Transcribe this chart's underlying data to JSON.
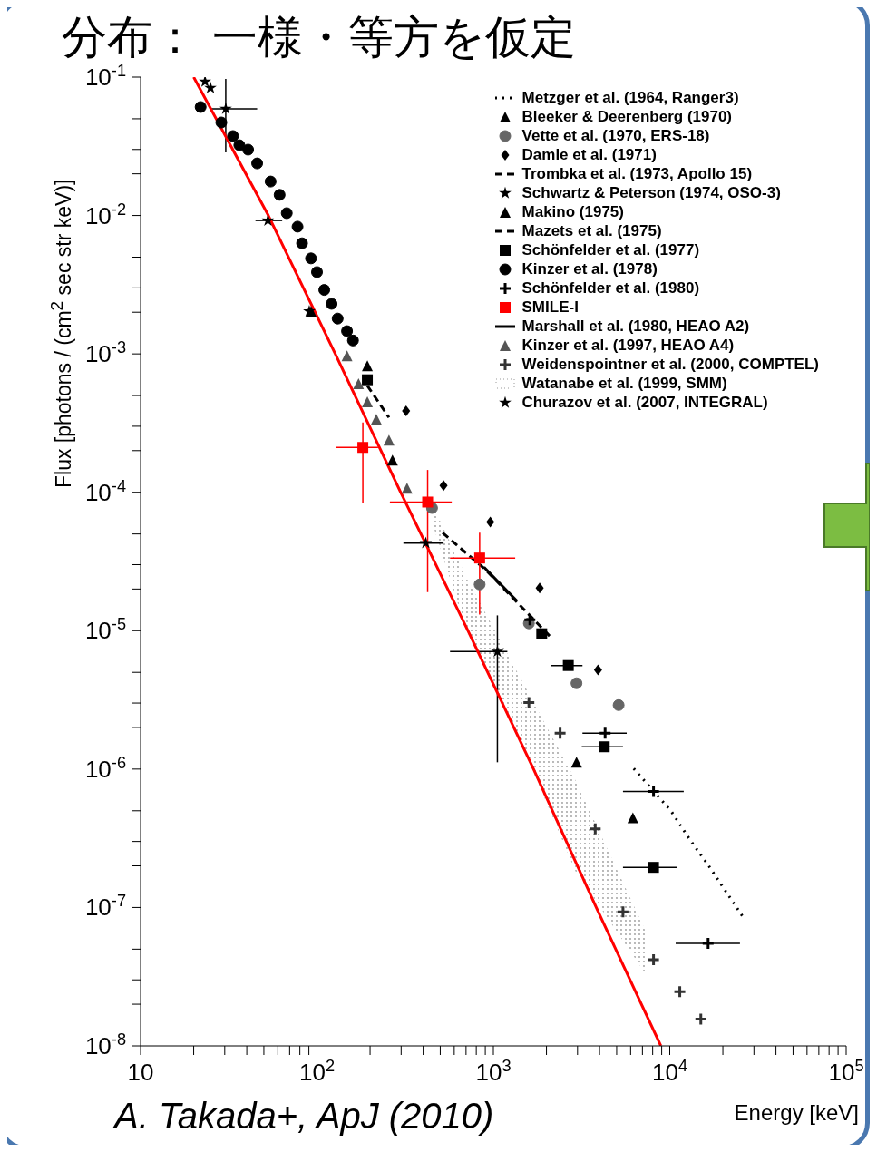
{
  "chart_data": {
    "type": "scatter",
    "title": "分布： 一様・等方を仮定",
    "xlabel": "Energy [keV]",
    "ylabel": "Flux [photons / (cm$^{2}$ sec str keV)]",
    "annotations": [
      "A. Takada+, ApJ (2010)"
    ],
    "log": "xy",
    "legend": "top right",
    "xlim": [
      10,
      100000
    ],
    "ylim": [
      1e-08,
      0.1
    ],
    "xticks": [
      {
        "value": 10,
        "label": "10"
      },
      {
        "value": 20,
        "label": null
      },
      {
        "value": 30,
        "label": null
      },
      {
        "value": 40,
        "label": null
      },
      {
        "value": 50,
        "label": null
      },
      {
        "value": 60,
        "label": null
      },
      {
        "value": 70,
        "label": null
      },
      {
        "value": 80,
        "label": null
      },
      {
        "value": 90,
        "label": null
      },
      {
        "value": 100,
        "label": "10$^{2}$"
      },
      {
        "value": 200,
        "label": null
      },
      {
        "value": 300,
        "label": null
      },
      {
        "value": 400,
        "label": null
      },
      {
        "value": 500,
        "label": null
      },
      {
        "value": 600,
        "label": null
      },
      {
        "value": 700,
        "label": null
      },
      {
        "value": 800,
        "label": null
      },
      {
        "value": 900,
        "label": null
      },
      {
        "value": 1000,
        "label": "10$^{3}$"
      },
      {
        "value": 2000,
        "label": null
      },
      {
        "value": 3000,
        "label": null
      },
      {
        "value": 4000,
        "label": null
      },
      {
        "value": 5000,
        "label": null
      },
      {
        "value": 6000,
        "label": null
      },
      {
        "value": 7000,
        "label": null
      },
      {
        "value": 8000,
        "label": null
      },
      {
        "value": 9000,
        "label": null
      },
      {
        "value": 10000,
        "label": "10$^{4}$"
      },
      {
        "value": 20000,
        "label": null
      },
      {
        "value": 30000,
        "label": null
      },
      {
        "value": 40000,
        "label": null
      },
      {
        "value": 50000,
        "label": null
      },
      {
        "value": 60000,
        "label": null
      },
      {
        "value": 70000,
        "label": null
      },
      {
        "value": 80000,
        "label": null
      },
      {
        "value": 90000,
        "label": null
      },
      {
        "value": 100000,
        "label": "10$^{5}$"
      }
    ],
    "yticks": [
      {
        "value": 1e-08,
        "label": "10$^{-8}$"
      },
      {
        "value": 2e-08,
        "label": null
      },
      {
        "value": 3e-08,
        "label": null
      },
      {
        "value": 5e-08,
        "label": null
      },
      {
        "value": 1e-07,
        "label": "10$^{-7}$"
      },
      {
        "value": 2e-07,
        "label": null
      },
      {
        "value": 3e-07,
        "label": null
      },
      {
        "value": 5e-07,
        "label": null
      },
      {
        "value": 1e-06,
        "label": "10$^{-6}$"
      },
      {
        "value": 2e-06,
        "label": null
      },
      {
        "value": 3e-06,
        "label": null
      },
      {
        "value": 5e-06,
        "label": null
      },
      {
        "value": 1e-05,
        "label": "10$^{-5}$"
      },
      {
        "value": 2e-05,
        "label": null
      },
      {
        "value": 3e-05,
        "label": null
      },
      {
        "value": 5e-05,
        "label": null
      },
      {
        "value": 0.0001,
        "label": "10$^{-4}$"
      },
      {
        "value": 0.0002,
        "label": null
      },
      {
        "value": 0.0003,
        "label": null
      },
      {
        "value": 0.0005,
        "label": null
      },
      {
        "value": 0.001,
        "label": "10$^{-3}$"
      },
      {
        "value": 0.002,
        "label": null
      },
      {
        "value": 0.003,
        "label": null
      },
      {
        "value": 0.005,
        "label": null
      },
      {
        "value": 0.01,
        "label": "10$^{-2}$"
      },
      {
        "value": 0.02,
        "label": null
      },
      {
        "value": 0.03,
        "label": null
      },
      {
        "value": 0.05,
        "label": null
      },
      {
        "value": 0.1,
        "label": "10$^{-1}$"
      }
    ],
    "series": [
      {
        "name": "Metzger et al. (1964, Ranger3)",
        "type": "line",
        "line_style": "dotted",
        "color": "#000000",
        "x": [
          6250,
          10200,
          13100,
          16500,
          26400
        ],
        "values": [
          1.01e-06,
          4.95e-07,
          3.05e-07,
          2.03e-07,
          8.3e-08
        ]
      },
      {
        "name": "Bleeker & Deerenberg (1970)",
        "marker": "triangle",
        "color": "#000000",
        "x": [
          92.5,
          193
        ],
        "values": [
          0.00203,
          0.00082
        ]
      },
      {
        "name": "Vette et al. (1970, ERS-18)",
        "marker": "circle",
        "color": "#666666",
        "x": [
          449,
          836,
          1590,
          2960,
          5130
        ],
        "values": [
          7.7e-05,
          2.16e-05,
          1.13e-05,
          4.17e-06,
          2.9e-06
        ]
      },
      {
        "name": "Damle et al. (1971)",
        "marker": "diamond",
        "color": "#000000",
        "x": [
          320,
          522,
          961,
          1830,
          3920
        ],
        "values": [
          0.000387,
          0.000112,
          6.1e-05,
          2.03e-05,
          5.2e-06
        ]
      },
      {
        "name": "Trombka et al. (1973, Apollo 15)",
        "type": "line",
        "line_style": "dashed",
        "color": "#000000",
        "x": [
          516,
          906,
          2130
        ],
        "values": [
          5.1e-05,
          2.75e-05,
          8.9e-06
        ]
      },
      {
        "name": "Schwartz & Peterson (1974, OSO-3)",
        "marker": "star",
        "color": "#000000",
        "x": [
          30.4,
          52.7,
          90.4,
          414,
          1054
        ],
        "values": [
          0.059,
          0.0092,
          0.00203,
          4.3e-05,
          7.06e-06
        ],
        "errors": [
          [
            0.0286,
            0.097
          ],
          null,
          null,
          null,
          [
            1.12e-06,
            1.29e-05
          ]
        ],
        "xerrors": [
          [
            24.9,
            45.8
          ],
          [
            44.8,
            63.5
          ],
          null,
          [
            309,
            522
          ],
          [
            568,
            1200
          ]
        ]
      },
      {
        "name": "Makino (1975)",
        "marker": "triangle",
        "color": "#000000",
        "x": [
          268,
          2960,
          6180
        ],
        "values": [
          0.000171,
          1.12e-06,
          4.45e-07
        ]
      },
      {
        "name": "Mazets et al. (1975)",
        "type": "line",
        "line_style": "dashed",
        "color": "#000000",
        "x": [
          193,
          256
        ],
        "values": [
          0.00059,
          0.000347
        ]
      },
      {
        "name": "Schönfelder et al. (1977)",
        "marker": "square",
        "color": "#000000",
        "x": [
          193,
          1880,
          2660,
          4250,
          8090
        ],
        "values": [
          0.00065,
          9.5e-06,
          5.6e-06,
          1.45e-06,
          1.95e-07
        ],
        "xerrors": [
          null,
          null,
          [
            2130,
            3200
          ],
          [
            3170,
            5430
          ],
          [
            5430,
            11000
          ]
        ]
      },
      {
        "name": "Kinzer et al. (1978)",
        "marker": "circle",
        "color": "#000000",
        "x": [
          21.9,
          28.7,
          33.4,
          36.3,
          40.7,
          45.8,
          54.6,
          61.4,
          67.4,
          77.6,
          82.3,
          92.5,
          100,
          110,
          121,
          131,
          148,
          160
        ],
        "values": [
          0.0608,
          0.047,
          0.0375,
          0.0322,
          0.0299,
          0.0238,
          0.0176,
          0.0141,
          0.0104,
          0.0083,
          0.0063,
          0.0049,
          0.0039,
          0.0029,
          0.0023,
          0.0018,
          0.00146,
          0.00125
        ]
      },
      {
        "name": "Schönfelder et al. (1980)",
        "marker": "cross",
        "color": "#000000",
        "x": [
          1610,
          4300,
          8090,
          16500
        ],
        "values": [
          1.2e-05,
          1.82e-06,
          6.9e-07,
          5.5e-08
        ],
        "xerrors": [
          null,
          [
            3200,
            5700
          ],
          [
            5430,
            12000
          ],
          [
            10800,
            25000
          ]
        ]
      },
      {
        "name": "SMILE-I",
        "marker": "square",
        "color": "#ff0000",
        "x": [
          182,
          424,
          836
        ],
        "values": [
          0.000211,
          8.5e-05,
          3.35e-05
        ],
        "errors": [
          [
            8.3e-05,
            0.00032
          ],
          [
            1.9e-05,
            0.000145
          ],
          [
            1.31e-05,
            5.1e-05
          ]
        ],
        "xerrors": [
          [
            128,
            222
          ],
          [
            259,
            581
          ],
          [
            568,
            1330
          ]
        ]
      },
      {
        "name": "Marshall et al. (1980, HEAO A2)",
        "type": "line",
        "line_style": "solid",
        "color": "#000000",
        "x": [
          885,
          1360
        ],
        "values": [
          2.88e-05,
          1.64e-05
        ]
      },
      {
        "name": "Kinzer et al. (1997, HEAO A4)",
        "marker": "triangle",
        "color": "#555555",
        "x": [
          148,
          172,
          193,
          217,
          256,
          324
        ],
        "values": [
          0.00097,
          0.00061,
          0.00045,
          0.000337,
          0.000238,
          0.000107
        ]
      },
      {
        "name": "Weidenspointner et al. (2000, COMPTEL)",
        "marker": "cross",
        "color": "#333333",
        "x": [
          1590,
          2390,
          3780,
          5430,
          8090,
          11400,
          15000
        ],
        "values": [
          3.03e-06,
          1.82e-06,
          3.7e-07,
          9.3e-08,
          4.2e-08,
          2.46e-08,
          1.56e-08
        ]
      },
      {
        "name": "Watanabe et al. (1999, SMM)",
        "type": "area",
        "color": "#999999",
        "x": [
          449,
          718,
          1450,
          2920,
          7440
        ],
        "values": [
          null,
          null,
          null,
          null,
          null
        ],
        "lower": [
          6.1e-05,
          9.3e-06,
          1.51e-06,
          1.83e-07,
          3.2e-08
        ],
        "upper": [
          8.3e-05,
          2.3e-05,
          4.36e-06,
          8.3e-07,
          6.4e-08
        ]
      },
      {
        "name": "Churazov et al. (2007, INTEGRAL)",
        "marker": "star",
        "color": "#000000",
        "x": [
          23.2,
          24.9
        ],
        "values": [
          0.0927,
          0.0834
        ]
      },
      {
        "type": "line",
        "line_style": "solid",
        "color": "#ff0000",
        "x": [
          20,
          53,
          127,
          298,
          718,
          1690,
          3830,
          8900
        ],
        "values": [
          0.1,
          0.01,
          0.001,
          0.0001,
          1e-05,
          1e-06,
          1e-07,
          1e-08
        ]
      }
    ]
  }
}
